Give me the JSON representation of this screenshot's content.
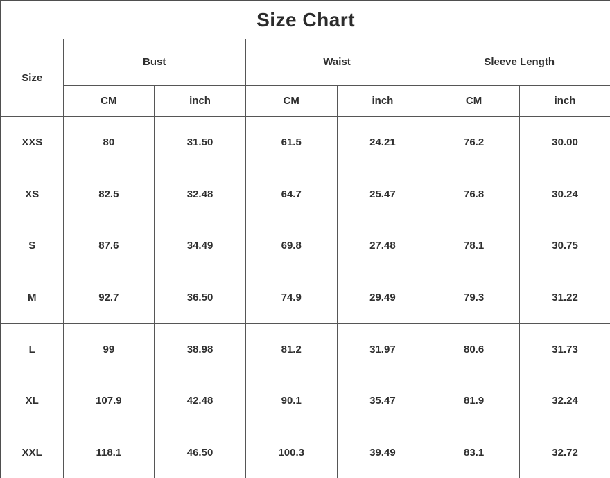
{
  "title": "Size Chart",
  "chart_data": {
    "type": "table",
    "title": "Size Chart",
    "column_groups": [
      {
        "label": "Size",
        "subcolumns": []
      },
      {
        "label": "Bust",
        "subcolumns": [
          "CM",
          "inch"
        ]
      },
      {
        "label": "Waist",
        "subcolumns": [
          "CM",
          "inch"
        ]
      },
      {
        "label": "Sleeve Length",
        "subcolumns": [
          "CM",
          "inch"
        ]
      }
    ],
    "rows": [
      {
        "size": "XXS",
        "values": [
          "80",
          "31.50",
          "61.5",
          "24.21",
          "76.2",
          "30.00"
        ]
      },
      {
        "size": "XS",
        "values": [
          "82.5",
          "32.48",
          "64.7",
          "25.47",
          "76.8",
          "30.24"
        ]
      },
      {
        "size": "S",
        "values": [
          "87.6",
          "34.49",
          "69.8",
          "27.48",
          "78.1",
          "30.75"
        ]
      },
      {
        "size": "M",
        "values": [
          "92.7",
          "36.50",
          "74.9",
          "29.49",
          "79.3",
          "31.22"
        ]
      },
      {
        "size": "L",
        "values": [
          "99",
          "38.98",
          "81.2",
          "31.97",
          "80.6",
          "31.73"
        ]
      },
      {
        "size": "XL",
        "values": [
          "107.9",
          "42.48",
          "90.1",
          "35.47",
          "81.9",
          "32.24"
        ]
      },
      {
        "size": "XXL",
        "values": [
          "118.1",
          "46.50",
          "100.3",
          "39.49",
          "83.1",
          "32.72"
        ]
      }
    ]
  },
  "colors": {
    "border": "#565656",
    "outer_border": "#4f4f4f",
    "text": "#303030",
    "title_text": "#2b2b2b",
    "background": "#ffffff"
  }
}
